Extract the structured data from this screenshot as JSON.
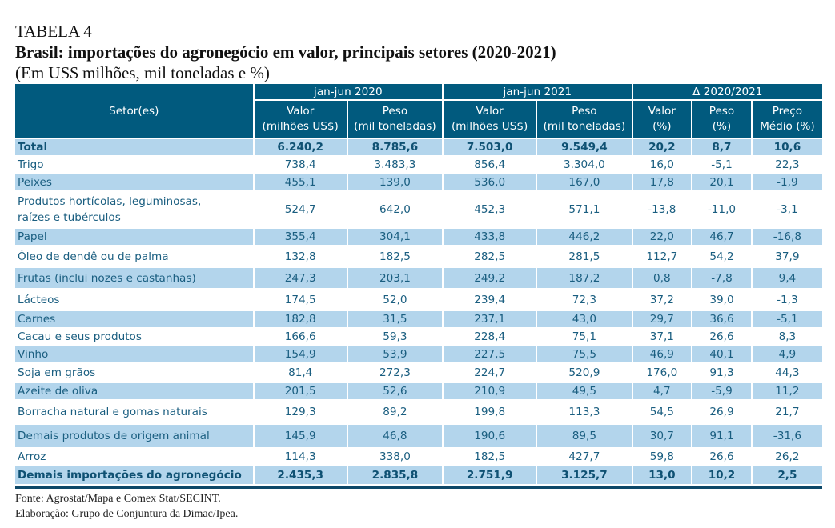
{
  "table_label": "TABELA 4",
  "title": "Brasil: importações do agronegócio em valor, principais setores (2020-2021)",
  "subtitle": "(Em US$ milhões, mil toneladas e %)",
  "colors": {
    "header_bg": "#015a7e",
    "header_text": "#ffffff",
    "row_shade": "#b3d5ec",
    "body_text": "#1a5e80",
    "bottom_rule": "#0d4869"
  },
  "header": {
    "setor": "Setor(es)",
    "groups": [
      "jan-jun 2020",
      "jan-jun 2021",
      "Δ 2020/2021"
    ],
    "subcols": [
      {
        "line1": "Valor",
        "line2": "(milhões US$)"
      },
      {
        "line1": "Peso",
        "line2": "(mil toneladas)"
      },
      {
        "line1": "Valor",
        "line2": "(milhões US$)"
      },
      {
        "line1": "Peso",
        "line2": "(mil toneladas)"
      },
      {
        "line1": "Valor",
        "line2": "(%)"
      },
      {
        "line1": "Peso",
        "line2": "(%)"
      },
      {
        "line1": "Preço",
        "line2": "Médio (%)"
      }
    ]
  },
  "rows": [
    {
      "setor": "Total",
      "v2020": "6.240,2",
      "p2020": "8.785,6",
      "v2021": "7.503,0",
      "p2021": "9.549,4",
      "dv": "20,2",
      "dp": "8,7",
      "dpm": "10,6"
    },
    {
      "setor": "Trigo",
      "v2020": "738,4",
      "p2020": "3.483,3",
      "v2021": "856,4",
      "p2021": "3.304,0",
      "dv": "16,0",
      "dp": "-5,1",
      "dpm": "22,3"
    },
    {
      "setor": "Peixes",
      "v2020": "455,1",
      "p2020": "139,0",
      "v2021": "536,0",
      "p2021": "167,0",
      "dv": "17,8",
      "dp": "20,1",
      "dpm": "-1,9"
    },
    {
      "setor_line1": "Produtos hortícolas, leguminosas,",
      "setor_line2": "raízes e tubérculos",
      "v2020": "524,7",
      "p2020": "642,0",
      "v2021": "452,3",
      "p2021": "571,1",
      "dv": "-13,8",
      "dp": "-11,0",
      "dpm": "-3,1"
    },
    {
      "setor": "Papel",
      "v2020": "355,4",
      "p2020": "304,1",
      "v2021": "433,8",
      "p2021": "446,2",
      "dv": "22,0",
      "dp": "46,7",
      "dpm": "-16,8"
    },
    {
      "setor": "Óleo de dendê ou de palma",
      "v2020": "132,8",
      "p2020": "182,5",
      "v2021": "282,5",
      "p2021": "281,5",
      "dv": "112,7",
      "dp": "54,2",
      "dpm": "37,9"
    },
    {
      "setor": "Frutas (inclui nozes e castanhas)",
      "v2020": "247,3",
      "p2020": "203,1",
      "v2021": "249,2",
      "p2021": "187,2",
      "dv": "0,8",
      "dp": "-7,8",
      "dpm": "9,4"
    },
    {
      "setor": "Lácteos",
      "v2020": "174,5",
      "p2020": "52,0",
      "v2021": "239,4",
      "p2021": "72,3",
      "dv": "37,2",
      "dp": "39,0",
      "dpm": "-1,3"
    },
    {
      "setor": "Carnes",
      "v2020": "182,8",
      "p2020": "31,5",
      "v2021": "237,1",
      "p2021": "43,0",
      "dv": "29,7",
      "dp": "36,6",
      "dpm": "-5,1"
    },
    {
      "setor": "Cacau e seus produtos",
      "v2020": "166,6",
      "p2020": "59,3",
      "v2021": "228,4",
      "p2021": "75,1",
      "dv": "37,1",
      "dp": "26,6",
      "dpm": "8,3"
    },
    {
      "setor": "Vinho",
      "v2020": "154,9",
      "p2020": "53,9",
      "v2021": "227,5",
      "p2021": "75,5",
      "dv": "46,9",
      "dp": "40,1",
      "dpm": "4,9"
    },
    {
      "setor": "Soja em grãos",
      "v2020": "81,4",
      "p2020": "272,3",
      "v2021": "224,7",
      "p2021": "520,9",
      "dv": "176,0",
      "dp": "91,3",
      "dpm": "44,3"
    },
    {
      "setor": "Azeite de oliva",
      "v2020": "201,5",
      "p2020": "52,6",
      "v2021": "210,9",
      "p2021": "49,5",
      "dv": "4,7",
      "dp": "-5,9",
      "dpm": "11,2"
    },
    {
      "setor": "Borracha natural e gomas naturais",
      "v2020": "129,3",
      "p2020": "89,2",
      "v2021": "199,8",
      "p2021": "113,3",
      "dv": "54,5",
      "dp": "26,9",
      "dpm": "21,7"
    },
    {
      "setor": "Demais produtos de origem animal",
      "v2020": "145,9",
      "p2020": "46,8",
      "v2021": "190,6",
      "p2021": "89,5",
      "dv": "30,7",
      "dp": "91,1",
      "dpm": "-31,6"
    },
    {
      "setor": "Arroz",
      "v2020": "114,3",
      "p2020": "338,0",
      "v2021": "182,5",
      "p2021": "427,7",
      "dv": "59,8",
      "dp": "26,6",
      "dpm": "26,2"
    },
    {
      "setor": "Demais importações do agronegócio",
      "v2020": "2.435,3",
      "p2020": "2.835,8",
      "v2021": "2.751,9",
      "p2021": "3.125,7",
      "dv": "13,0",
      "dp": "10,2",
      "dpm": "2,5"
    }
  ],
  "footer": {
    "source": "Fonte: Agrostat/Mapa e Comex Stat/SECINT.",
    "elaboration": "Elaboração: Grupo de Conjuntura da Dimac/Ipea."
  }
}
